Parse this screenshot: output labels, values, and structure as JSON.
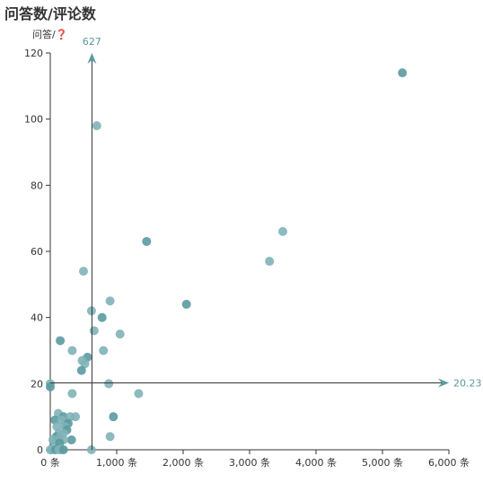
{
  "chart_data": {
    "type": "scatter",
    "title": "问答数/评论数",
    "xlabel": "",
    "ylabel": "问答/❓",
    "xlim": [
      0,
      6000
    ],
    "ylim": [
      0,
      120
    ],
    "x_ticks": [
      0,
      1000,
      2000,
      3000,
      4000,
      5000,
      6000
    ],
    "x_tick_labels": [
      "0 条",
      "1,000 条",
      "2,000 条",
      "3,000 条",
      "4,000 条",
      "5,000 条",
      "6,000 条"
    ],
    "y_ticks": [
      0,
      20,
      40,
      60,
      80,
      100,
      120
    ],
    "y_tick_labels": [
      "0",
      "20",
      "40",
      "60",
      "80",
      "100",
      "120"
    ],
    "grid": false,
    "mark_lines": {
      "x": {
        "value": 627,
        "label": "627"
      },
      "y": {
        "value": 20.23,
        "label": "20.23"
      }
    },
    "colors": {
      "point_light": "#7fb3b8",
      "point_dark": "#5b9aa0",
      "axis": "#333333",
      "ref_line": "#333333",
      "ref_arrow": "#5b9aa0"
    },
    "points": [
      [
        5300,
        114
      ],
      [
        700,
        98
      ],
      [
        3500,
        66
      ],
      [
        1450,
        63
      ],
      [
        3300,
        57
      ],
      [
        500,
        54
      ],
      [
        2050,
        44
      ],
      [
        900,
        45
      ],
      [
        620,
        42
      ],
      [
        780,
        40
      ],
      [
        660,
        36
      ],
      [
        1050,
        35
      ],
      [
        150,
        33
      ],
      [
        330,
        30
      ],
      [
        800,
        30
      ],
      [
        560,
        28
      ],
      [
        480,
        27
      ],
      [
        520,
        26
      ],
      [
        470,
        24
      ],
      [
        880,
        20
      ],
      [
        0,
        20
      ],
      [
        0,
        19
      ],
      [
        330,
        17
      ],
      [
        1330,
        17
      ],
      [
        950,
        10
      ],
      [
        900,
        4
      ],
      [
        120,
        11
      ],
      [
        200,
        10
      ],
      [
        300,
        10
      ],
      [
        380,
        10
      ],
      [
        70,
        9
      ],
      [
        170,
        9
      ],
      [
        230,
        8
      ],
      [
        270,
        8
      ],
      [
        100,
        7
      ],
      [
        220,
        7
      ],
      [
        250,
        6
      ],
      [
        130,
        5
      ],
      [
        200,
        5
      ],
      [
        90,
        4
      ],
      [
        150,
        4
      ],
      [
        40,
        3
      ],
      [
        320,
        3
      ],
      [
        200,
        3
      ],
      [
        70,
        2
      ],
      [
        140,
        2
      ],
      [
        0,
        0
      ],
      [
        30,
        0
      ],
      [
        80,
        0
      ],
      [
        130,
        0
      ],
      [
        160,
        0
      ],
      [
        200,
        0
      ],
      [
        620,
        0
      ]
    ]
  }
}
